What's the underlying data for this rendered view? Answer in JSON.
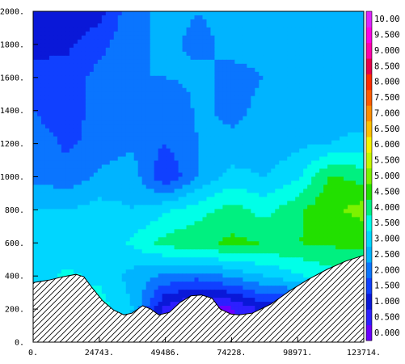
{
  "chart_data": {
    "type": "heatmap",
    "title": "",
    "xlabel": "",
    "ylabel": "",
    "xlim": [
      0,
      123714
    ],
    "ylim": [
      0,
      2000
    ],
    "x_tick_labels": [
      "0.",
      "24743.",
      "49486.",
      "74228.",
      "98971.",
      "123714."
    ],
    "x_tick_values": [
      0,
      24743,
      49486,
      74228,
      98971,
      123714
    ],
    "y_tick_labels": [
      "0.",
      "200.",
      "400.",
      "600.",
      "800.",
      "1000.",
      "1200.",
      "1400.",
      "1600.",
      "1800.",
      "2000."
    ],
    "y_tick_values": [
      0,
      200,
      400,
      600,
      800,
      1000,
      1200,
      1400,
      1600,
      1800,
      2000
    ],
    "colorbar": {
      "labels": [
        "0.000",
        "0.500",
        "1.000",
        "1.500",
        "2.000",
        "2.500",
        "3.000",
        "3.500",
        "4.000",
        "4.500",
        "5.000",
        "5.500",
        "6.000",
        "6.500",
        "7.000",
        "7.500",
        "8.000",
        "8.500",
        "9.000",
        "9.500",
        "10.00"
      ],
      "values": [
        0,
        0.5,
        1,
        1.5,
        2,
        2.5,
        3,
        3.5,
        4,
        4.5,
        5,
        5.5,
        6,
        6.5,
        7,
        7.5,
        8,
        8.5,
        9,
        9.5,
        10
      ],
      "colors": [
        "#6a00ff",
        "#2d1fff",
        "#0a18d8",
        "#1040ff",
        "#0a75ff",
        "#00b4ff",
        "#00d6ff",
        "#00ffe8",
        "#00f080",
        "#22e000",
        "#7cf200",
        "#c4f800",
        "#f6f600",
        "#ffbf00",
        "#ff8c00",
        "#ff5a00",
        "#ff2a00",
        "#e6004a",
        "#ff00aa",
        "#ff00e6",
        "#dd22ff"
      ]
    },
    "terrain": {
      "x": [
        0,
        6000,
        11000,
        16000,
        19000,
        22000,
        26000,
        30000,
        34000,
        37000,
        41000,
        44000,
        47000,
        51000,
        55000,
        59000,
        63000,
        67000,
        70000,
        74000,
        77000,
        82000,
        89000,
        96000,
        103000,
        110000,
        117000,
        123714
      ],
      "y": [
        360,
        375,
        395,
        410,
        395,
        330,
        250,
        195,
        165,
        175,
        220,
        200,
        165,
        180,
        240,
        280,
        285,
        265,
        200,
        170,
        165,
        175,
        230,
        310,
        380,
        440,
        490,
        525
      ]
    },
    "field": {
      "rows_y": [
        0,
        200,
        400,
        600,
        800,
        1000,
        1200,
        1400,
        1600,
        1800,
        2000
      ],
      "cols_x": [
        0,
        12371,
        24743,
        37114,
        49486,
        61857,
        74228,
        86600,
        98971,
        111343,
        123714
      ],
      "values": [
        [
          1.8,
          2.4,
          3.0,
          2.2,
          0.6,
          0.2,
          0.8,
          1.4,
          1.8,
          2.4,
          3.0
        ],
        [
          2.6,
          3.2,
          3.8,
          3.0,
          0.8,
          0.2,
          0.4,
          1.2,
          1.0,
          2.4,
          3.2
        ],
        [
          3.2,
          3.6,
          3.4,
          2.8,
          2.4,
          2.2,
          2.6,
          3.0,
          3.4,
          3.8,
          4.2
        ],
        [
          3.0,
          3.2,
          3.0,
          3.6,
          4.2,
          4.4,
          4.6,
          4.5,
          4.5,
          4.6,
          4.6
        ],
        [
          3.0,
          3.0,
          3.2,
          3.0,
          3.4,
          3.8,
          4.2,
          3.8,
          4.4,
          4.9,
          5.2
        ],
        [
          2.4,
          2.2,
          2.6,
          2.8,
          1.5,
          2.5,
          3.2,
          3.0,
          3.4,
          4.6,
          4.3
        ],
        [
          2.4,
          1.9,
          2.2,
          2.4,
          2.0,
          2.5,
          2.6,
          2.6,
          2.9,
          3.0,
          3.2
        ],
        [
          2.0,
          1.5,
          2.4,
          2.4,
          2.0,
          2.6,
          2.4,
          2.6,
          2.8,
          2.8,
          2.7
        ],
        [
          1.6,
          1.7,
          2.2,
          2.5,
          2.5,
          2.6,
          2.4,
          2.5,
          2.6,
          2.8,
          2.6
        ],
        [
          1.4,
          1.4,
          1.8,
          2.4,
          2.6,
          2.4,
          2.6,
          2.6,
          2.6,
          2.6,
          2.6
        ],
        [
          1.1,
          1.2,
          1.3,
          2.4,
          2.6,
          2.5,
          2.6,
          2.6,
          2.6,
          2.7,
          2.6
        ]
      ]
    }
  }
}
